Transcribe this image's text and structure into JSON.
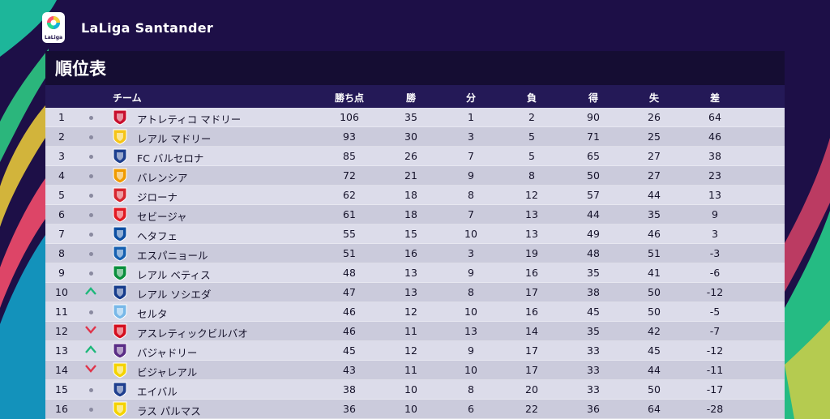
{
  "brand": {
    "logo_text": "LaLiga",
    "name": "LaLiga Santander"
  },
  "page_title": "順位表",
  "columns": {
    "team": "チーム",
    "points": "勝ち点",
    "won": "勝",
    "drawn": "分",
    "lost": "負",
    "goals_for": "得",
    "goals_against": "失",
    "goal_diff": "差"
  },
  "standings": [
    {
      "pos": "1",
      "trend": "same",
      "team": "アトレティコ マドリー",
      "crest": "atletico-crest-icon",
      "pts": "106",
      "w": "35",
      "d": "1",
      "l": "2",
      "gf": "90",
      "ga": "26",
      "gd": "64"
    },
    {
      "pos": "2",
      "trend": "same",
      "team": "レアル マドリー",
      "crest": "real-madrid-crest-icon",
      "pts": "93",
      "w": "30",
      "d": "3",
      "l": "5",
      "gf": "71",
      "ga": "25",
      "gd": "46"
    },
    {
      "pos": "3",
      "trend": "same",
      "team": "FC バルセロナ",
      "crest": "barcelona-crest-icon",
      "pts": "85",
      "w": "26",
      "d": "7",
      "l": "5",
      "gf": "65",
      "ga": "27",
      "gd": "38"
    },
    {
      "pos": "4",
      "trend": "same",
      "team": "バレンシア",
      "crest": "valencia-crest-icon",
      "pts": "72",
      "w": "21",
      "d": "9",
      "l": "8",
      "gf": "50",
      "ga": "27",
      "gd": "23"
    },
    {
      "pos": "5",
      "trend": "same",
      "team": "ジローナ",
      "crest": "girona-crest-icon",
      "pts": "62",
      "w": "18",
      "d": "8",
      "l": "12",
      "gf": "57",
      "ga": "44",
      "gd": "13"
    },
    {
      "pos": "6",
      "trend": "same",
      "team": "セビージャ",
      "crest": "sevilla-crest-icon",
      "pts": "61",
      "w": "18",
      "d": "7",
      "l": "13",
      "gf": "44",
      "ga": "35",
      "gd": "9"
    },
    {
      "pos": "7",
      "trend": "same",
      "team": "ヘタフェ",
      "crest": "getafe-crest-icon",
      "pts": "55",
      "w": "15",
      "d": "10",
      "l": "13",
      "gf": "49",
      "ga": "46",
      "gd": "3"
    },
    {
      "pos": "8",
      "trend": "same",
      "team": "エスパニョール",
      "crest": "espanyol-crest-icon",
      "pts": "51",
      "w": "16",
      "d": "3",
      "l": "19",
      "gf": "48",
      "ga": "51",
      "gd": "-3"
    },
    {
      "pos": "9",
      "trend": "same",
      "team": "レアル ベティス",
      "crest": "betis-crest-icon",
      "pts": "48",
      "w": "13",
      "d": "9",
      "l": "16",
      "gf": "35",
      "ga": "41",
      "gd": "-6"
    },
    {
      "pos": "10",
      "trend": "up",
      "team": "レアル ソシエダ",
      "crest": "real-sociedad-crest-icon",
      "pts": "47",
      "w": "13",
      "d": "8",
      "l": "17",
      "gf": "38",
      "ga": "50",
      "gd": "-12"
    },
    {
      "pos": "11",
      "trend": "same",
      "team": "セルタ",
      "crest": "celta-crest-icon",
      "pts": "46",
      "w": "12",
      "d": "10",
      "l": "16",
      "gf": "45",
      "ga": "50",
      "gd": "-5"
    },
    {
      "pos": "12",
      "trend": "down",
      "team": "アスレティックビルバオ",
      "crest": "athletic-bilbao-crest-icon",
      "pts": "46",
      "w": "11",
      "d": "13",
      "l": "14",
      "gf": "35",
      "ga": "42",
      "gd": "-7"
    },
    {
      "pos": "13",
      "trend": "up",
      "team": "バジャドリー",
      "crest": "valladolid-crest-icon",
      "pts": "45",
      "w": "12",
      "d": "9",
      "l": "17",
      "gf": "33",
      "ga": "45",
      "gd": "-12"
    },
    {
      "pos": "14",
      "trend": "down",
      "team": "ビジャレアル",
      "crest": "villarreal-crest-icon",
      "pts": "43",
      "w": "11",
      "d": "10",
      "l": "17",
      "gf": "33",
      "ga": "44",
      "gd": "-11"
    },
    {
      "pos": "15",
      "trend": "same",
      "team": "エイバル",
      "crest": "eibar-crest-icon",
      "pts": "38",
      "w": "10",
      "d": "8",
      "l": "20",
      "gf": "33",
      "ga": "50",
      "gd": "-17"
    },
    {
      "pos": "16",
      "trend": "same",
      "team": "ラス パルマス",
      "crest": "las-palmas-crest-icon",
      "pts": "36",
      "w": "10",
      "d": "6",
      "l": "22",
      "gf": "36",
      "ga": "64",
      "gd": "-28"
    }
  ],
  "colors": {
    "background": "#1d0f47",
    "header": "#150d33",
    "column_header": "#241957",
    "up": "#1db87a",
    "down": "#e0344a",
    "row_light": "#dcdcea",
    "row_dark": "#cbcbdc"
  }
}
